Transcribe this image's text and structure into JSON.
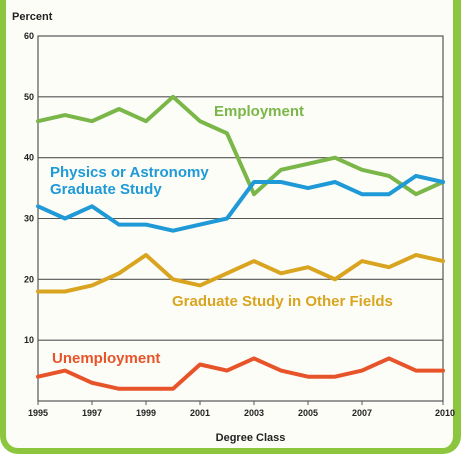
{
  "chart_data": {
    "type": "line",
    "ylabel": "Percent",
    "xlabel": "Degree Class",
    "xlim": [
      1995,
      2010
    ],
    "ylim": [
      0,
      60
    ],
    "x_ticks": [
      "1995",
      "1997",
      "1999",
      "2001",
      "2003",
      "2005",
      "2007",
      "2010"
    ],
    "y_ticks": [
      "10",
      "20",
      "30",
      "40",
      "50",
      "60"
    ],
    "grid": "horizontal",
    "x": [
      1995,
      1996,
      1997,
      1998,
      1999,
      2000,
      2001,
      2002,
      2003,
      2004,
      2005,
      2006,
      2007,
      2008,
      2009,
      2010
    ],
    "series": [
      {
        "name": "Employment",
        "label_lines": [
          "Employment"
        ],
        "color": "#7ab648",
        "values": [
          46,
          47,
          46,
          48,
          46,
          50,
          46,
          44,
          34,
          38,
          39,
          40,
          38,
          37,
          34,
          36
        ]
      },
      {
        "name": "Physics or Astronomy Graduate Study",
        "label_lines": [
          "Physics or Astronomy",
          "Graduate Study"
        ],
        "color": "#1f9ad6",
        "values": [
          32,
          30,
          32,
          29,
          29,
          28,
          29,
          30,
          36,
          36,
          35,
          36,
          34,
          34,
          37,
          36
        ]
      },
      {
        "name": "Graduate Study in Other Fields",
        "label_lines": [
          "Graduate Study in Other Fields"
        ],
        "color": "#d9a520",
        "values": [
          18,
          18,
          19,
          21,
          24,
          20,
          19,
          21,
          23,
          21,
          22,
          20,
          23,
          22,
          24,
          23
        ]
      },
      {
        "name": "Unemployment",
        "label_lines": [
          "Unemployment"
        ],
        "color": "#e8542a",
        "values": [
          4,
          5,
          3,
          2,
          2,
          2,
          6,
          5,
          7,
          5,
          4,
          4,
          5,
          7,
          5,
          5
        ]
      }
    ]
  }
}
